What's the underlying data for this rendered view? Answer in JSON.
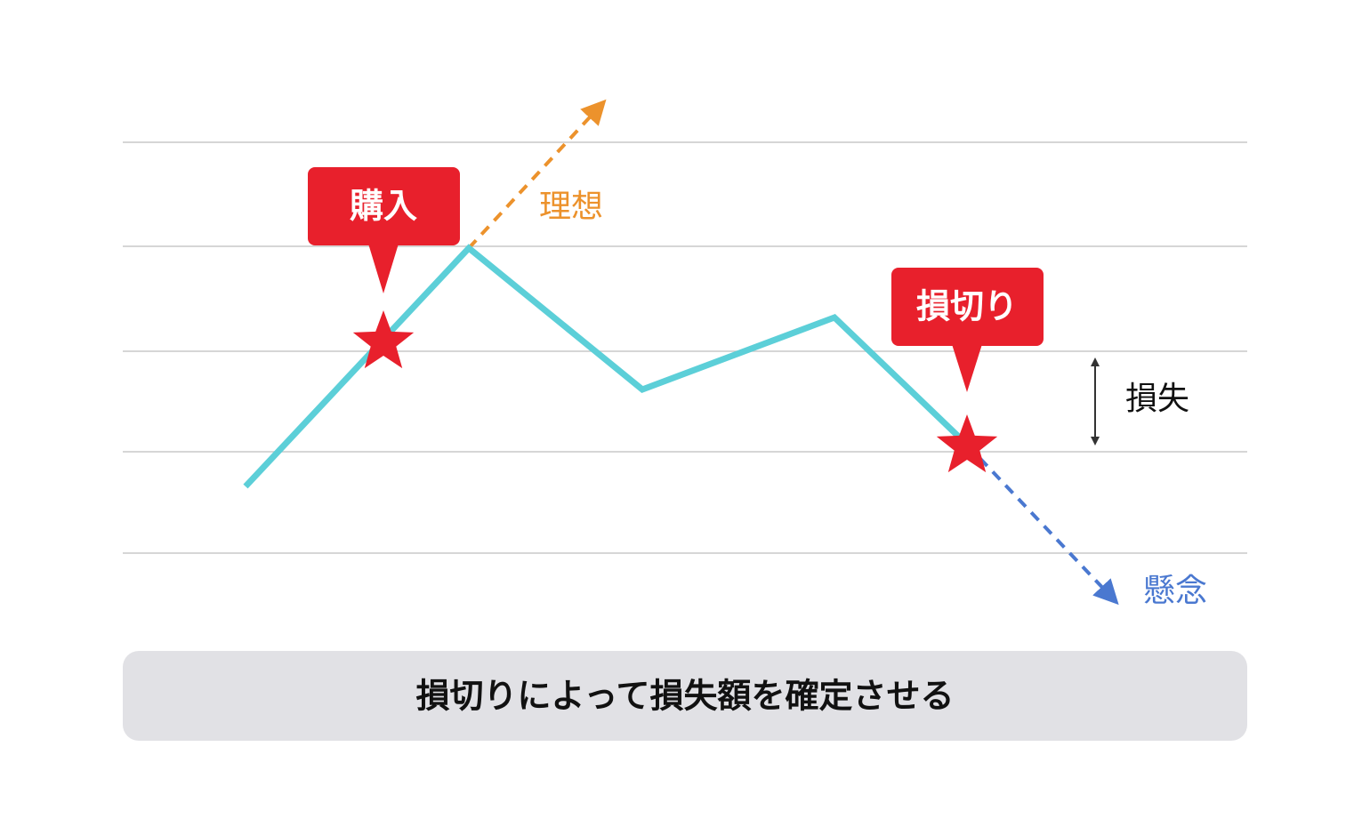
{
  "callouts": {
    "buy": "購入",
    "stop_loss": "損切り"
  },
  "labels": {
    "ideal": "理想",
    "loss": "損失",
    "concern": "懸念"
  },
  "caption": "損切りによって損失額を確定させる"
}
